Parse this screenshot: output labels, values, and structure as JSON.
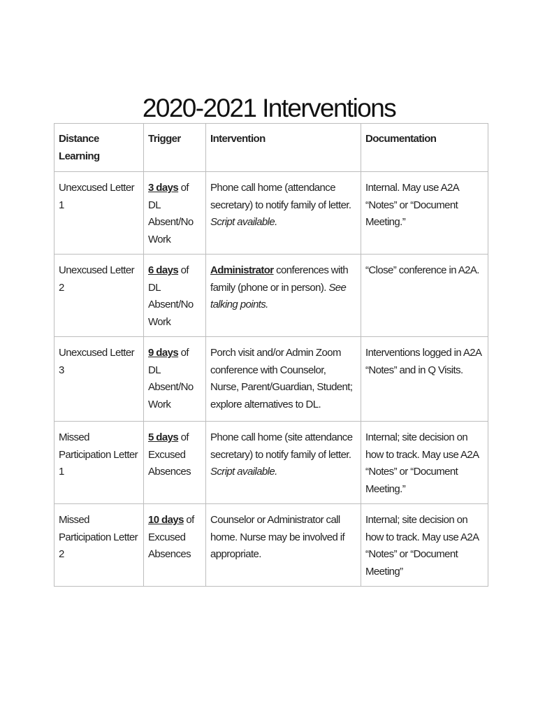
{
  "title": "2020-2021 Interventions",
  "table": {
    "headers": [
      "Distance Learning",
      "Trigger",
      "Intervention",
      "Documentation"
    ],
    "rows": [
      {
        "letter": "Unexcused Letter 1",
        "trigger_days": " 3 days",
        "trigger_rest": " of DL Absent/No Work",
        "intervention_bold": "",
        "intervention": "Phone call home (attendance secretary) to notify family of letter. ",
        "intervention_italic": "Script available.",
        "documentation": "Internal. May use A2A “Notes” or “Document Meeting.”"
      },
      {
        "letter": "Unexcused Letter 2",
        "trigger_days": " 6 days",
        "trigger_rest": " of DL Absent/No Work",
        "intervention_bold": "Administrator",
        "intervention": " conferences with family (phone or in person). ",
        "intervention_italic": "See talking points.",
        "documentation": "“Close” conference in A2A."
      },
      {
        "letter": "Unexcused Letter 3",
        "trigger_days": " 9 days",
        "trigger_rest": " of DL Absent/No Work",
        "intervention_bold": "",
        "intervention": "Porch visit and/or Admin Zoom conference with Counselor, Nurse, Parent/Guardian, Student; explore alternatives to DL.",
        "intervention_italic": "",
        "documentation": "Interventions logged in A2A “Notes” and in Q Visits."
      },
      {
        "letter": "Missed Participation Letter 1",
        "trigger_days": " 5 days",
        "trigger_rest": " of Excused Absences",
        "intervention_bold": "",
        "intervention": "Phone call home (site attendance secretary) to notify family of letter. ",
        "intervention_italic": "Script available.",
        "documentation": "Internal; site decision on how to track. May use A2A “Notes” or “Document Meeting.”"
      },
      {
        "letter": "Missed Participation Letter 2",
        "trigger_days": " 10 days",
        "trigger_rest": " of Excused Absences",
        "intervention_bold": "",
        "intervention": "Counselor or Administrator call home. Nurse may be involved if appropriate.",
        "intervention_italic": "",
        "documentation": "Internal; site decision on how to track. May use A2A “Notes” or “Document Meeting”"
      }
    ]
  }
}
